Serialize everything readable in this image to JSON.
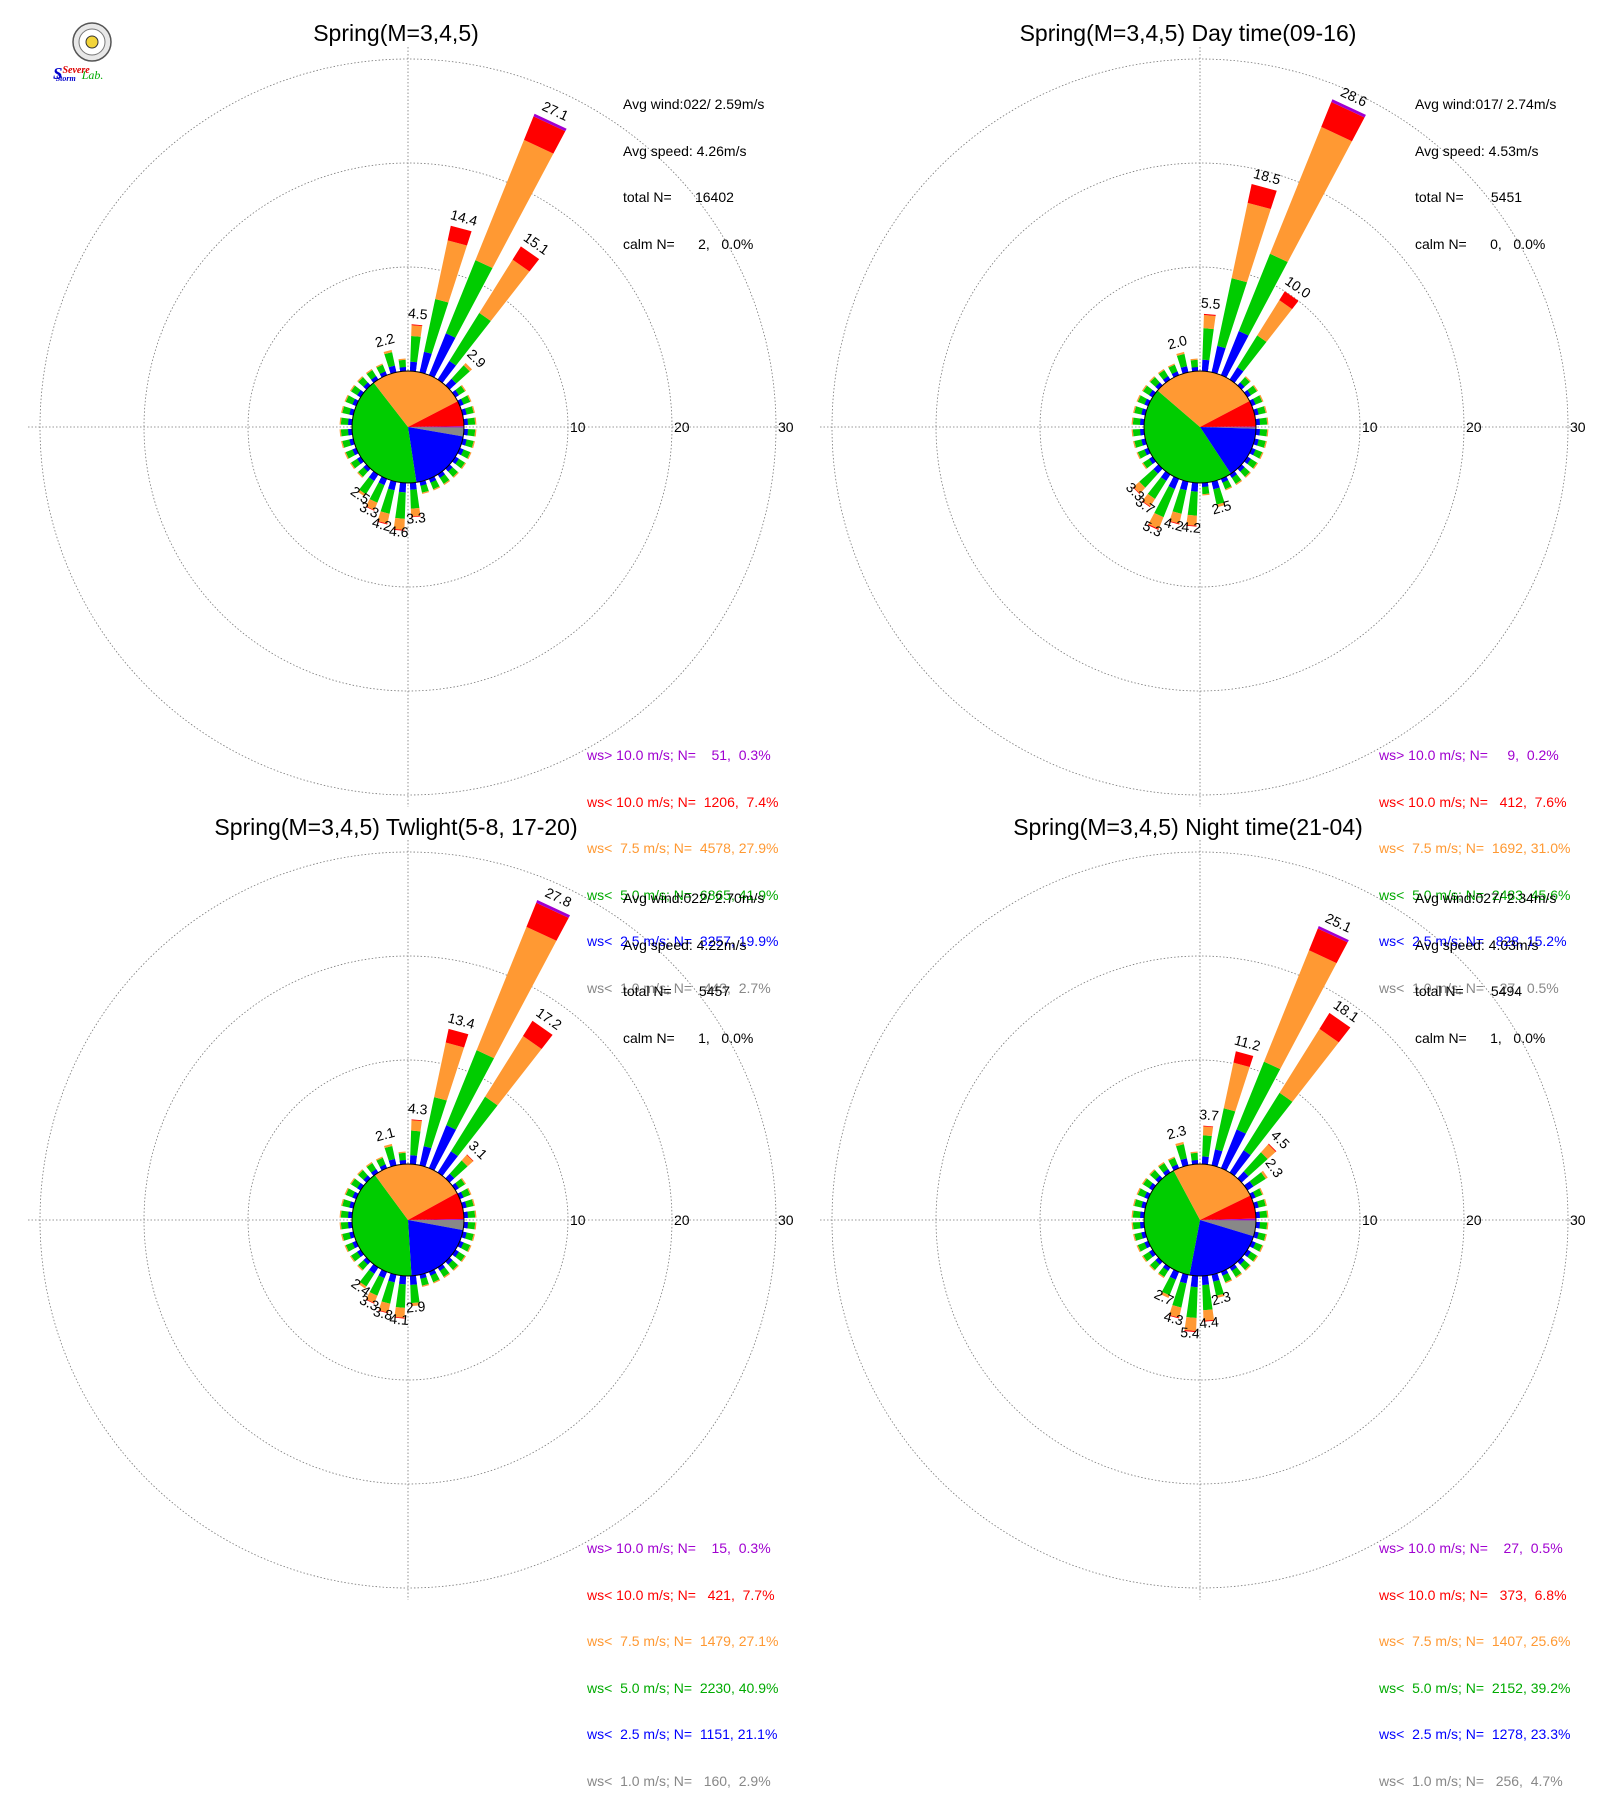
{
  "logo": {
    "text_line1": "Severe",
    "text_line2": "Storm",
    "text_suffix": "Lab."
  },
  "colors": {
    "gt10": "#a000d0",
    "lt10": "#ff0000",
    "lt7_5": "#ff9933",
    "lt5": "#00cc00",
    "lt2_5": "#0000ff",
    "lt1": "#888888",
    "grid": "#777777"
  },
  "chart_data": [
    {
      "type": "windrose",
      "title": "Spring(M=3,4,5)",
      "rlim": [
        0,
        30
      ],
      "ring_labels": [
        "10",
        "20",
        "30"
      ],
      "stats": {
        "avg_wind": "Avg wind:022/ 2.59m/s",
        "avg_speed": "Avg speed: 4.26m/s",
        "total": "total N=      16402",
        "calm": "calm N=      2,   0.0%"
      },
      "legend": [
        "ws> 10.0 m/s; N=    51,  0.3%",
        "ws< 10.0 m/s; N=  1206,  7.4%",
        "ws<  7.5 m/s; N=  4578, 27.9%",
        "ws<  5.0 m/s; N=  6865, 41.9%",
        "ws<  2.5 m/s; N=  3257, 19.9%",
        "ws<  1.0 m/s; N=   443,  2.7%"
      ],
      "calm_pie_percent": [
        2.7,
        19.9,
        41.9,
        27.9,
        7.4,
        0.3
      ],
      "petals": [
        {
          "dir": 5,
          "total": 4.5,
          "label": "4.5"
        },
        {
          "dir": 15,
          "total": 14.4,
          "label": "14.4"
        },
        {
          "dir": 25,
          "total": 27.1,
          "label": "27.1"
        },
        {
          "dir": 35,
          "total": 15.1,
          "label": "15.1"
        },
        {
          "dir": 45,
          "total": 2.9,
          "label": "2.9"
        },
        {
          "dir": 345,
          "total": 2.2,
          "label": "2.2"
        },
        {
          "dir": 175,
          "total": 3.3,
          "label": "3.3"
        },
        {
          "dir": 185,
          "total": 4.6,
          "label": "4.6"
        },
        {
          "dir": 195,
          "total": 4.2,
          "label": "4.2"
        },
        {
          "dir": 205,
          "total": 3.3,
          "label": "3.3"
        },
        {
          "dir": 215,
          "total": 2.5,
          "label": "2.5"
        }
      ]
    },
    {
      "type": "windrose",
      "title": "Spring(M=3,4,5) Day time(09-16)",
      "rlim": [
        0,
        30
      ],
      "ring_labels": [
        "10",
        "20",
        "30"
      ],
      "stats": {
        "avg_wind": "Avg wind:017/ 2.74m/s",
        "avg_speed": "Avg speed: 4.53m/s",
        "total": "total N=       5451",
        "calm": "calm N=      0,   0.0%"
      },
      "legend": [
        "ws> 10.0 m/s; N=     9,  0.2%",
        "ws< 10.0 m/s; N=   412,  7.6%",
        "ws<  7.5 m/s; N=  1692, 31.0%",
        "ws<  5.0 m/s; N=  2483, 45.6%",
        "ws<  2.5 m/s; N=   828, 15.2%",
        "ws<  1.0 m/s; N=    27,  0.5%"
      ],
      "calm_pie_percent": [
        0.5,
        15.2,
        45.6,
        31.0,
        7.6,
        0.2
      ],
      "petals": [
        {
          "dir": 5,
          "total": 5.5,
          "label": "5.5"
        },
        {
          "dir": 15,
          "total": 18.5,
          "label": "18.5"
        },
        {
          "dir": 25,
          "total": 28.6,
          "label": "28.6"
        },
        {
          "dir": 35,
          "total": 10.0,
          "label": "10.0"
        },
        {
          "dir": 345,
          "total": 2.0,
          "label": "2.0"
        },
        {
          "dir": 165,
          "total": 2.5,
          "label": "2.5"
        },
        {
          "dir": 185,
          "total": 4.2,
          "label": "4.2"
        },
        {
          "dir": 195,
          "total": 4.2,
          "label": "4.2"
        },
        {
          "dir": 205,
          "total": 5.3,
          "label": "5.3"
        },
        {
          "dir": 215,
          "total": 3.7,
          "label": "3.7"
        },
        {
          "dir": 225,
          "total": 3.3,
          "label": "3.3"
        }
      ]
    },
    {
      "type": "windrose",
      "title": "Spring(M=3,4,5) Twlight(5-8, 17-20)",
      "rlim": [
        0,
        30
      ],
      "ring_labels": [
        "10",
        "20",
        "30"
      ],
      "stats": {
        "avg_wind": "Avg wind:022/ 2.70m/s",
        "avg_speed": "Avg speed: 4.22m/s",
        "total": "total N=       5457",
        "calm": "calm N=      1,   0.0%"
      },
      "legend": [
        "ws> 10.0 m/s; N=    15,  0.3%",
        "ws< 10.0 m/s; N=   421,  7.7%",
        "ws<  7.5 m/s; N=  1479, 27.1%",
        "ws<  5.0 m/s; N=  2230, 40.9%",
        "ws<  2.5 m/s; N=  1151, 21.1%",
        "ws<  1.0 m/s; N=   160,  2.9%"
      ],
      "calm_pie_percent": [
        2.9,
        21.1,
        40.9,
        27.1,
        7.7,
        0.3
      ],
      "petals": [
        {
          "dir": 5,
          "total": 4.3,
          "label": "4.3"
        },
        {
          "dir": 15,
          "total": 13.4,
          "label": "13.4"
        },
        {
          "dir": 25,
          "total": 27.8,
          "label": "27.8"
        },
        {
          "dir": 35,
          "total": 17.2,
          "label": "17.2"
        },
        {
          "dir": 45,
          "total": 3.1,
          "label": "3.1"
        },
        {
          "dir": 345,
          "total": 2.1,
          "label": "2.1"
        },
        {
          "dir": 175,
          "total": 2.9,
          "label": "2.9"
        },
        {
          "dir": 185,
          "total": 4.1,
          "label": "4.1"
        },
        {
          "dir": 195,
          "total": 3.8,
          "label": "3.8"
        },
        {
          "dir": 205,
          "total": 3.3,
          "label": "3.3"
        },
        {
          "dir": 215,
          "total": 2.4,
          "label": "2.4"
        }
      ]
    },
    {
      "type": "windrose",
      "title": "Spring(M=3,4,5) Night time(21-04)",
      "rlim": [
        0,
        30
      ],
      "ring_labels": [
        "10",
        "20",
        "30"
      ],
      "stats": {
        "avg_wind": "Avg wind:027/ 2.34m/s",
        "avg_speed": "Avg speed: 4.03m/s",
        "total": "total N=       5494",
        "calm": "calm N=      1,   0.0%"
      },
      "legend": [
        "ws> 10.0 m/s; N=    27,  0.5%",
        "ws< 10.0 m/s; N=   373,  6.8%",
        "ws<  7.5 m/s; N=  1407, 25.6%",
        "ws<  5.0 m/s; N=  2152, 39.2%",
        "ws<  2.5 m/s; N=  1278, 23.3%",
        "ws<  1.0 m/s; N=   256,  4.7%"
      ],
      "calm_pie_percent": [
        4.7,
        23.3,
        39.2,
        25.6,
        6.8,
        0.5
      ],
      "petals": [
        {
          "dir": 5,
          "total": 3.7,
          "label": "3.7"
        },
        {
          "dir": 15,
          "total": 11.2,
          "label": "11.2"
        },
        {
          "dir": 25,
          "total": 25.1,
          "label": "25.1"
        },
        {
          "dir": 35,
          "total": 18.1,
          "label": "18.1"
        },
        {
          "dir": 45,
          "total": 4.5,
          "label": "4.5"
        },
        {
          "dir": 55,
          "total": 2.3,
          "label": "2.3"
        },
        {
          "dir": 345,
          "total": 2.3,
          "label": "2.3"
        },
        {
          "dir": 165,
          "total": 2.3,
          "label": "2.3"
        },
        {
          "dir": 175,
          "total": 4.4,
          "label": "4.4"
        },
        {
          "dir": 185,
          "total": 5.4,
          "label": "5.4"
        },
        {
          "dir": 195,
          "total": 4.3,
          "label": "4.3"
        },
        {
          "dir": 205,
          "total": 2.7,
          "label": "2.7"
        }
      ]
    }
  ]
}
